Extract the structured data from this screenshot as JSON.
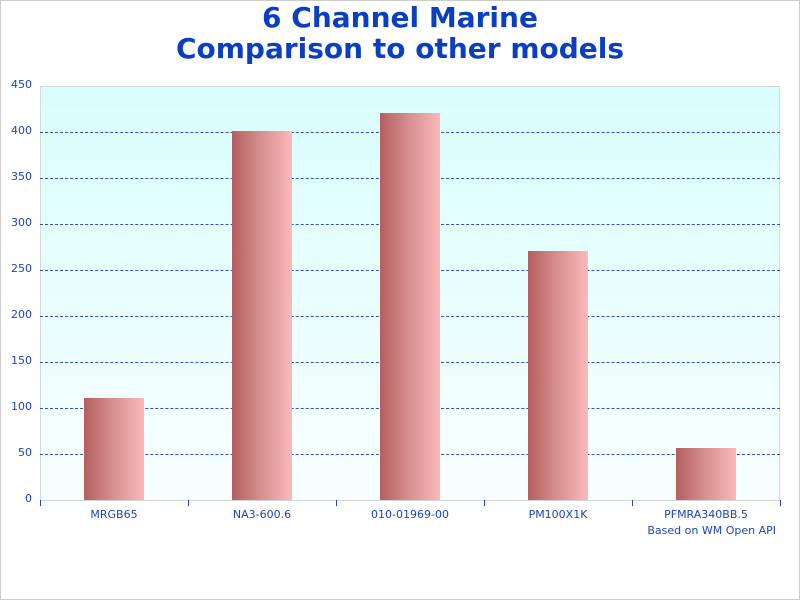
{
  "title_line1": "6 Channel Marine",
  "title_line2": "Comparison to other models",
  "credit": "Based on WM Open API",
  "y_ticks": [
    "0",
    "50",
    "100",
    "150",
    "200",
    "250",
    "300",
    "350",
    "400",
    "450"
  ],
  "chart_data": {
    "type": "bar",
    "title": "6 Channel Marine Comparison to other models",
    "categories": [
      "MRGB65",
      "NA3-600.6",
      "010-01969-00",
      "PM100X1K",
      "PFMRA340BB.5"
    ],
    "values": [
      111,
      401,
      421,
      271,
      56
    ],
    "xlabel": "",
    "ylabel": "",
    "ylim": [
      0,
      450
    ],
    "yticks": [
      0,
      50,
      100,
      150,
      200,
      250,
      300,
      350,
      400,
      450
    ],
    "grid": true,
    "annotations": [
      "Based on WM Open API"
    ],
    "colors": {
      "bar_dark": "#b55e5e",
      "bar_light": "#fbb9b9",
      "title": "#0b3fc1",
      "axis_text": "#1d45b8",
      "plot_bg_top": "#d9fefe"
    }
  }
}
